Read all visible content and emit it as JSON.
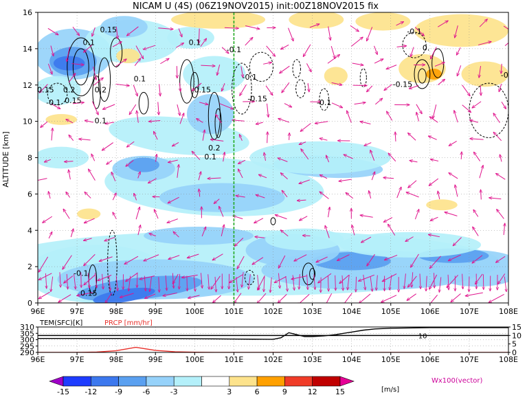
{
  "chart_data": [
    {
      "type": "heatmap",
      "title": "NICAM U (4S) (06Z19NOV2015) init:00Z18NOV2015 fix",
      "ylabel": "ALTITUDE [km]",
      "xlabel": "",
      "x_ticks": [
        "96E",
        "97E",
        "98E",
        "99E",
        "100E",
        "101E",
        "102E",
        "103E",
        "104E",
        "105E",
        "106E",
        "107E",
        "108E"
      ],
      "xlim": [
        96,
        108
      ],
      "y_ticks": [
        "0",
        "2",
        "4",
        "6",
        "8",
        "10",
        "12",
        "14",
        "16"
      ],
      "ylim": [
        0,
        16
      ],
      "grid": true,
      "marker_line_lon": 101,
      "contour_labels": [
        {
          "text": "0.1",
          "x": 97.3,
          "y": 14.2
        },
        {
          "text": "0.15",
          "x": 97.8,
          "y": 14.9
        },
        {
          "text": "0.15",
          "x": 96.2,
          "y": 11.6
        },
        {
          "text": "0.2",
          "x": 96.8,
          "y": 11.6
        },
        {
          "text": "0.2",
          "x": 97.6,
          "y": 11.6
        },
        {
          "text": "-0.1",
          "x": 96.4,
          "y": 10.9
        },
        {
          "text": "0.15",
          "x": 96.9,
          "y": 11.0
        },
        {
          "text": "0.1",
          "x": 97.6,
          "y": 9.9
        },
        {
          "text": "0.1",
          "x": 98.6,
          "y": 12.2
        },
        {
          "text": "0.1",
          "x": 100.0,
          "y": 14.2
        },
        {
          "text": "-0.1",
          "x": 101.0,
          "y": 13.8
        },
        {
          "text": "0.15",
          "x": 100.2,
          "y": 11.6
        },
        {
          "text": "-0.1",
          "x": 101.4,
          "y": 12.3
        },
        {
          "text": "-0.15",
          "x": 101.6,
          "y": 11.1
        },
        {
          "text": "0.2",
          "x": 100.5,
          "y": 8.4
        },
        {
          "text": "0.1",
          "x": 100.4,
          "y": 7.9
        },
        {
          "text": "-0.1",
          "x": 103.3,
          "y": 10.9
        },
        {
          "text": "-0.1",
          "x": 105.6,
          "y": 14.8
        },
        {
          "text": "-0.15",
          "x": 105.3,
          "y": 11.9
        },
        {
          "text": "0.",
          "x": 105.9,
          "y": 13.9
        },
        {
          "text": "-0",
          "x": 107.9,
          "y": 12.4
        },
        {
          "text": "-0.1",
          "x": 97.1,
          "y": 1.5
        },
        {
          "text": "0.15",
          "x": 97.3,
          "y": 0.4
        }
      ],
      "colorbar": {
        "levels": [
          "-15",
          "-12",
          "-9",
          "-6",
          "-3",
          "3",
          "6",
          "9",
          "12",
          "15"
        ],
        "colors": [
          "#a000c8",
          "#1e3cff",
          "#3c78ee",
          "#5aa0f0",
          "#96d2fa",
          "#b4f0fa",
          "#ffffff",
          "#fde38c",
          "#ffa000",
          "#f03c28",
          "#c00000",
          "#e60096"
        ],
        "unit": "[m/s]",
        "vector_label": "Wx100(vector)"
      }
    },
    {
      "type": "line",
      "series": [
        {
          "name": "TEM(SFC)[K]",
          "color": "#000000",
          "x": [
            96,
            97,
            98,
            99,
            100,
            101,
            101.5,
            102,
            102.2,
            102.4,
            102.6,
            102.8,
            103,
            103.3,
            103.6,
            104,
            104.3,
            104.6,
            105,
            106,
            107,
            108
          ],
          "values": [
            301,
            301,
            301,
            301,
            300.8,
            300.5,
            300.4,
            300.3,
            301.5,
            305.5,
            304,
            302.5,
            302.5,
            303,
            304,
            306,
            307.5,
            308.5,
            309,
            309.5,
            309.5,
            309.5
          ]
        },
        {
          "name": "PRCP [mm/hr]",
          "color": "#e8302a",
          "x": [
            96,
            97,
            97.5,
            98,
            98.5,
            99,
            99.5,
            100,
            100.5,
            101,
            102,
            103,
            104,
            105,
            106,
            107,
            108
          ],
          "values": [
            0,
            0,
            0.2,
            1.0,
            3.0,
            1.2,
            0.4,
            0.1,
            0,
            0,
            0,
            0,
            0,
            0,
            0,
            0,
            0
          ]
        }
      ],
      "left_axis_ticks": [
        "290",
        "295",
        "300",
        "305",
        "310"
      ],
      "left_ylim": [
        290,
        310
      ],
      "right_axis_ticks": [
        "0",
        "5",
        "10",
        "15"
      ],
      "right_ylim": [
        0,
        15
      ],
      "reference_line_value": 10,
      "reference_line_label": "10",
      "x_ticks": [
        "96E",
        "97E",
        "98E",
        "99E",
        "100E",
        "101E",
        "102E",
        "103E",
        "104E",
        "105E",
        "106E",
        "107E",
        "108E"
      ]
    }
  ]
}
